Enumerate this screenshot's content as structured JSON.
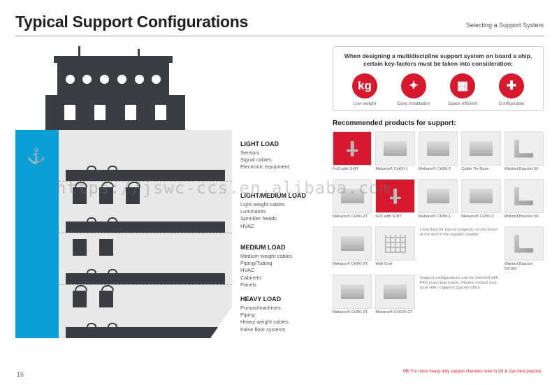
{
  "header": {
    "title": "Typical Support Configurations",
    "subtitle": "Selecting a Support System"
  },
  "infobox": {
    "text": "When designing a multidiscipline support system on board a ship, certain key-factors must be taken into consideration:",
    "icons": [
      {
        "glyph": "kg",
        "label": "Low weight"
      },
      {
        "glyph": "✦",
        "label": "Easy installation"
      },
      {
        "glyph": "▦",
        "label": "Space efficient"
      },
      {
        "glyph": "✚",
        "label": "Configurable"
      }
    ]
  },
  "ship": {
    "anchor_glyph": "⚓"
  },
  "loads": [
    {
      "heading": "LIGHT LOAD",
      "lines": "Sensors\nSignal cables\nElectronic equipment"
    },
    {
      "heading": "LIGHT/MEDIUM LOAD",
      "lines": "Light weight cables\nLuminaires\nSprinkler heads\nHVAC"
    },
    {
      "heading": "MEDIUM LOAD",
      "lines": "Medium weight cables\nPiping/Tubing\nHVAC\nCabinets\nPanels"
    },
    {
      "heading": "HEAVY LOAD",
      "lines": "Pumps/machines\nPiping\nHeavy weight cables\nFalse floor systems"
    }
  ],
  "recommended": {
    "heading": "Recommended products for support:",
    "rows": [
      [
        {
          "name": "FoS with S-BT",
          "style": "red",
          "shape": "bolt"
        },
        {
          "name": "Mekano® CH50-1",
          "shape": "channel"
        },
        {
          "name": "Mekano® CH50-2",
          "shape": "channel"
        },
        {
          "name": "Cable Tie Base",
          "shape": "channel"
        },
        {
          "name": "",
          "empty": true
        }
      ],
      [
        {
          "name": "Welded Bracket 50",
          "shape": "bracket"
        },
        {
          "name": "Mekano® CH50-2T",
          "shape": "channel"
        },
        {
          "name": "FoS with S-BT",
          "style": "red",
          "shape": "bolt"
        },
        {
          "name": "Mekano® CH50-1",
          "shape": "channel"
        },
        {
          "name": "Mekano® CH50-2",
          "shape": "channel"
        }
      ],
      [
        {
          "name": "Welded Bracket 50",
          "shape": "bracket"
        },
        {
          "name": "Mekano® CH50-2T",
          "shape": "channel"
        },
        {
          "name": "Wall Grid",
          "shape": "grid"
        },
        {
          "note": "Load data for typical supports can be found at the end of the support chapter.",
          "span": 2
        }
      ],
      [
        {
          "name": "Welded Bracket 50/100",
          "shape": "bracket"
        },
        {
          "name": "Mekano® CH50-2T",
          "shape": "channel"
        },
        {
          "name": "Mekano® CH100-2T",
          "shape": "channel"
        },
        {
          "note": "Support configurations can be checked with P4D Load data matrix. Please contact your local Hilti / Oglaend System office.",
          "span": 2
        }
      ]
    ]
  },
  "footer": {
    "note": "NB! For more heavy duty support channels refer to Oil & Gas best practice.",
    "page": "16"
  },
  "watermark": "https://jswc-ccs.en.alibaba.com",
  "colors": {
    "accent_red": "#d7192e",
    "hull_blue": "#0a9fd8",
    "dark": "#3a3d44"
  }
}
